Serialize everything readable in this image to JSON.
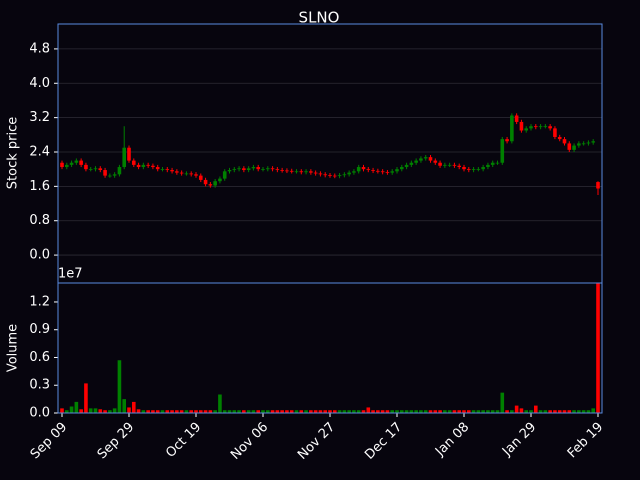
{
  "chart_data": {
    "type": "candlestick",
    "title": "SLNO",
    "ylabel": "Stock price",
    "up_color": "#008000",
    "down_color": "#ff0000",
    "grid": true,
    "ylim": [
      -0.65,
      5.38
    ],
    "yticks": [
      {
        "value": 0,
        "label": "0.0"
      },
      {
        "value": 0.8,
        "label": "0.8"
      },
      {
        "value": 1.6,
        "label": "1.6"
      },
      {
        "value": 2.4,
        "label": "2.4"
      },
      {
        "value": 3.2,
        "label": "3.2"
      },
      {
        "value": 4,
        "label": "4.0"
      },
      {
        "value": 4.8,
        "label": "4.8"
      }
    ],
    "x": [
      "Sep 09",
      null,
      null,
      null,
      null,
      null,
      null,
      null,
      null,
      null,
      null,
      null,
      null,
      null,
      "Sep 29",
      null,
      null,
      null,
      null,
      null,
      null,
      null,
      null,
      null,
      null,
      null,
      null,
      null,
      "Oct 19",
      null,
      null,
      null,
      null,
      null,
      null,
      null,
      null,
      null,
      null,
      null,
      null,
      null,
      "Nov 06",
      null,
      null,
      null,
      null,
      null,
      null,
      null,
      null,
      null,
      null,
      null,
      null,
      null,
      "Nov 27",
      null,
      null,
      null,
      null,
      null,
      null,
      null,
      null,
      null,
      null,
      null,
      null,
      null,
      "Dec 17",
      null,
      null,
      null,
      null,
      null,
      null,
      null,
      null,
      null,
      null,
      null,
      null,
      null,
      "Jan 08",
      null,
      null,
      null,
      null,
      null,
      null,
      null,
      null,
      null,
      null,
      null,
      null,
      null,
      "Jan 29",
      null,
      null,
      null,
      null,
      null,
      null,
      null,
      null,
      null,
      null,
      null,
      null,
      null,
      "Feb 19"
    ],
    "open": [
      2.15,
      2.05,
      2.1,
      2.15,
      2.2,
      2.1,
      2.0,
      2.0,
      2.02,
      1.98,
      1.85,
      1.85,
      1.88,
      2.05,
      2.5,
      2.2,
      2.1,
      2.05,
      2.1,
      2.08,
      2.05,
      2.0,
      2.0,
      1.98,
      1.95,
      1.92,
      1.9,
      1.9,
      1.88,
      1.85,
      1.75,
      1.65,
      1.62,
      1.72,
      1.78,
      1.95,
      1.98,
      2.0,
      2.02,
      1.98,
      2.02,
      2.05,
      2.0,
      2.0,
      2.02,
      2.0,
      1.98,
      1.97,
      1.96,
      1.95,
      1.95,
      1.93,
      1.95,
      1.92,
      1.9,
      1.88,
      1.86,
      1.85,
      1.84,
      1.86,
      1.88,
      1.92,
      1.95,
      2.05,
      2.0,
      1.98,
      1.96,
      1.95,
      1.93,
      1.92,
      1.95,
      2.0,
      2.05,
      2.1,
      2.15,
      2.2,
      2.25,
      2.28,
      2.2,
      2.15,
      2.08,
      2.1,
      2.1,
      2.08,
      2.05,
      2.0,
      1.98,
      2.0,
      2.0,
      2.05,
      2.1,
      2.15,
      2.15,
      2.7,
      2.65,
      3.25,
      3.1,
      2.9,
      2.95,
      3.0,
      2.98,
      3.0,
      3.0,
      2.95,
      2.75,
      2.7,
      2.6,
      2.45,
      2.55,
      2.6,
      2.6,
      2.62,
      1.7
    ],
    "high": [
      2.2,
      2.15,
      2.2,
      2.25,
      2.25,
      2.15,
      2.05,
      2.07,
      2.07,
      2.03,
      1.9,
      1.93,
      2.1,
      3.0,
      2.55,
      2.25,
      2.15,
      2.15,
      2.15,
      2.13,
      2.1,
      2.05,
      2.05,
      2.03,
      2.0,
      1.97,
      1.95,
      1.95,
      1.93,
      1.9,
      1.8,
      1.7,
      1.77,
      1.83,
      2.0,
      2.03,
      2.05,
      2.07,
      2.07,
      2.07,
      2.1,
      2.1,
      2.05,
      2.07,
      2.07,
      2.05,
      2.03,
      2.02,
      2.01,
      2.0,
      2.0,
      2.0,
      2.0,
      1.97,
      1.95,
      1.93,
      1.91,
      1.9,
      1.91,
      1.93,
      1.97,
      2.0,
      2.1,
      2.1,
      2.05,
      2.03,
      2.01,
      2.0,
      1.98,
      2.0,
      2.05,
      2.1,
      2.15,
      2.2,
      2.25,
      2.3,
      2.33,
      2.33,
      2.25,
      2.2,
      2.15,
      2.15,
      2.15,
      2.13,
      2.1,
      2.05,
      2.05,
      2.05,
      2.1,
      2.15,
      2.2,
      2.2,
      2.75,
      2.75,
      3.3,
      3.3,
      3.15,
      3.0,
      3.05,
      3.05,
      3.05,
      3.05,
      3.05,
      3.0,
      2.8,
      2.75,
      2.65,
      2.6,
      2.65,
      2.65,
      2.67,
      2.7,
      1.72
    ],
    "low": [
      2.0,
      2.0,
      2.05,
      2.1,
      2.05,
      1.95,
      1.95,
      1.95,
      1.93,
      1.8,
      1.8,
      1.8,
      1.83,
      2.0,
      2.15,
      2.05,
      2.0,
      2.0,
      2.03,
      2.0,
      1.95,
      1.95,
      1.93,
      1.9,
      1.87,
      1.85,
      1.85,
      1.83,
      1.8,
      1.7,
      1.6,
      1.57,
      1.57,
      1.67,
      1.73,
      1.9,
      1.93,
      1.95,
      1.93,
      1.93,
      1.97,
      1.95,
      1.95,
      1.95,
      1.95,
      1.93,
      1.92,
      1.91,
      1.9,
      1.9,
      1.88,
      1.88,
      1.87,
      1.85,
      1.83,
      1.81,
      1.8,
      1.79,
      1.79,
      1.81,
      1.83,
      1.87,
      1.9,
      1.95,
      1.93,
      1.91,
      1.9,
      1.88,
      1.87,
      1.87,
      1.9,
      1.95,
      2.0,
      2.05,
      2.1,
      2.15,
      2.2,
      2.15,
      2.1,
      2.03,
      2.03,
      2.05,
      2.03,
      2.0,
      1.95,
      1.93,
      1.93,
      1.95,
      1.95,
      2.0,
      2.05,
      2.1,
      2.1,
      2.6,
      2.6,
      3.05,
      2.85,
      2.85,
      2.9,
      2.93,
      2.93,
      2.95,
      2.9,
      2.7,
      2.65,
      2.55,
      2.4,
      2.4,
      2.5,
      2.55,
      2.55,
      2.57,
      1.4
    ],
    "close": [
      2.05,
      2.1,
      2.15,
      2.2,
      2.1,
      2.0,
      2.0,
      2.02,
      1.98,
      1.85,
      1.85,
      1.88,
      2.05,
      2.5,
      2.2,
      2.1,
      2.05,
      2.1,
      2.08,
      2.05,
      2.0,
      2.0,
      1.98,
      1.95,
      1.92,
      1.9,
      1.9,
      1.88,
      1.85,
      1.75,
      1.65,
      1.62,
      1.72,
      1.78,
      1.95,
      1.98,
      2.0,
      2.02,
      1.98,
      2.02,
      2.05,
      2.0,
      2.0,
      2.02,
      2.0,
      1.98,
      1.97,
      1.96,
      1.95,
      1.95,
      1.93,
      1.95,
      1.92,
      1.9,
      1.88,
      1.86,
      1.85,
      1.84,
      1.86,
      1.88,
      1.92,
      1.95,
      2.05,
      2.0,
      1.98,
      1.96,
      1.95,
      1.93,
      1.92,
      1.95,
      2.0,
      2.05,
      2.1,
      2.15,
      2.2,
      2.25,
      2.28,
      2.2,
      2.15,
      2.08,
      2.1,
      2.1,
      2.08,
      2.05,
      2.0,
      1.98,
      2.0,
      2.0,
      2.05,
      2.1,
      2.15,
      2.15,
      2.7,
      2.65,
      3.25,
      3.1,
      2.9,
      2.95,
      3.0,
      2.98,
      3.0,
      3.0,
      2.95,
      2.75,
      2.7,
      2.6,
      2.45,
      2.55,
      2.6,
      2.6,
      2.62,
      2.65,
      1.55
    ],
    "volume": {
      "ylabel": "Volume",
      "offset_label": "1e7",
      "ylim": [
        0,
        1.405
      ],
      "yticks": [
        {
          "value": 0,
          "label": "0.0"
        },
        {
          "value": 0.3,
          "label": "0.3"
        },
        {
          "value": 0.6,
          "label": "0.6"
        },
        {
          "value": 0.9,
          "label": "0.9"
        },
        {
          "value": 1.2,
          "label": "1.2"
        }
      ],
      "values": [
        0.05,
        0.03,
        0.07,
        0.12,
        0.04,
        0.32,
        0.05,
        0.05,
        0.04,
        0.03,
        0.03,
        0.05,
        0.57,
        0.15,
        0.06,
        0.12,
        0.04,
        0.03,
        0.03,
        0.03,
        0.03,
        0.03,
        0.03,
        0.03,
        0.03,
        0.03,
        0.03,
        0.03,
        0.03,
        0.03,
        0.03,
        0.03,
        0.03,
        0.2,
        0.03,
        0.03,
        0.03,
        0.03,
        0.03,
        0.03,
        0.03,
        0.03,
        0.03,
        0.03,
        0.03,
        0.03,
        0.03,
        0.03,
        0.03,
        0.03,
        0.03,
        0.03,
        0.03,
        0.03,
        0.03,
        0.03,
        0.03,
        0.03,
        0.03,
        0.03,
        0.03,
        0.03,
        0.03,
        0.03,
        0.06,
        0.03,
        0.03,
        0.03,
        0.03,
        0.03,
        0.03,
        0.03,
        0.03,
        0.03,
        0.03,
        0.03,
        0.03,
        0.03,
        0.03,
        0.03,
        0.03,
        0.03,
        0.03,
        0.03,
        0.03,
        0.03,
        0.03,
        0.03,
        0.03,
        0.03,
        0.03,
        0.03,
        0.22,
        0.03,
        0.03,
        0.08,
        0.05,
        0.03,
        0.03,
        0.08,
        0.03,
        0.03,
        0.03,
        0.03,
        0.03,
        0.03,
        0.03,
        0.03,
        0.03,
        0.03,
        0.03,
        0.05,
        1.4
      ]
    }
  }
}
